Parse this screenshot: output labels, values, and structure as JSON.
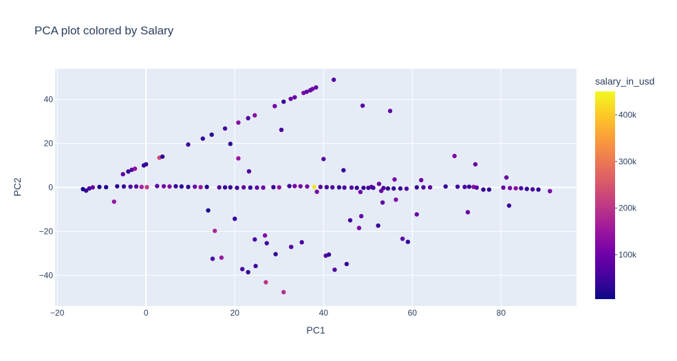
{
  "chart_data": {
    "type": "scatter",
    "title": "PCA plot colored by Salary",
    "xlabel": "PC1",
    "ylabel": "PC2",
    "xlim": [
      -20.5,
      97
    ],
    "ylim": [
      -54,
      54
    ],
    "xticks": [
      -20,
      0,
      20,
      40,
      60,
      80
    ],
    "yticks": [
      -40,
      -20,
      0,
      20,
      40
    ],
    "grid": true,
    "colorbar": {
      "title": "salary_in_usd",
      "range": [
        5000,
        450000
      ],
      "ticks": [
        100000,
        200000,
        300000,
        400000
      ],
      "tick_labels": [
        "100k",
        "200k",
        "300k",
        "400k"
      ],
      "colorscale": [
        "#0d0887",
        "#46039f",
        "#7201a8",
        "#9c179e",
        "#bd3786",
        "#d8576b",
        "#ed7953",
        "#fb9f3a",
        "#fdca26",
        "#f0f921"
      ]
    },
    "background_color": "#e5ecf6",
    "points": [
      {
        "x": -14.2,
        "y": -0.8,
        "salary": 15000
      },
      {
        "x": -13.5,
        "y": -1.5,
        "salary": 40000
      },
      {
        "x": -12.8,
        "y": -0.5,
        "salary": 60000
      },
      {
        "x": -12.0,
        "y": 0.0,
        "salary": 90000
      },
      {
        "x": -10.5,
        "y": 0.2,
        "salary": 20000
      },
      {
        "x": -9.0,
        "y": 0.1,
        "salary": 25000
      },
      {
        "x": -7.2,
        "y": -6.5,
        "salary": 150000
      },
      {
        "x": -6.5,
        "y": 0.5,
        "salary": 30000
      },
      {
        "x": -5.2,
        "y": 6.0,
        "salary": 80000
      },
      {
        "x": -5.0,
        "y": 0.4,
        "salary": 40000
      },
      {
        "x": -4.0,
        "y": 7.2,
        "salary": 40000
      },
      {
        "x": -3.5,
        "y": 0.3,
        "salary": 60000
      },
      {
        "x": -3.2,
        "y": 8.0,
        "salary": 70000
      },
      {
        "x": -2.5,
        "y": 8.5,
        "salary": 140000
      },
      {
        "x": -2.2,
        "y": 0.4,
        "salary": 70000
      },
      {
        "x": -1.0,
        "y": 0.2,
        "salary": 170000
      },
      {
        "x": -0.5,
        "y": 10.0,
        "salary": 40000
      },
      {
        "x": 0.0,
        "y": 10.5,
        "salary": 40000
      },
      {
        "x": 0.2,
        "y": 0.1,
        "salary": 210000
      },
      {
        "x": 2.5,
        "y": 0.6,
        "salary": 80000
      },
      {
        "x": 3.0,
        "y": 13.5,
        "salary": 230000
      },
      {
        "x": 3.7,
        "y": 14.0,
        "salary": 30000
      },
      {
        "x": 4.0,
        "y": 0.5,
        "salary": 110000
      },
      {
        "x": 5.3,
        "y": 0.4,
        "salary": 120000
      },
      {
        "x": 6.7,
        "y": 0.5,
        "salary": 40000
      },
      {
        "x": 8.0,
        "y": 0.4,
        "salary": 30000
      },
      {
        "x": 9.5,
        "y": 19.5,
        "salary": 50000
      },
      {
        "x": 9.5,
        "y": 0.2,
        "salary": 40000
      },
      {
        "x": 11.0,
        "y": 0.3,
        "salary": 90000
      },
      {
        "x": 12.3,
        "y": 0.1,
        "salary": 150000
      },
      {
        "x": 12.8,
        "y": 22.2,
        "salary": 40000
      },
      {
        "x": 13.7,
        "y": 0.2,
        "salary": 30000
      },
      {
        "x": 14.0,
        "y": -10.5,
        "salary": 20000
      },
      {
        "x": 14.8,
        "y": 24.0,
        "salary": 30000
      },
      {
        "x": 15.0,
        "y": -32.5,
        "salary": 60000
      },
      {
        "x": 15.5,
        "y": -19.8,
        "salary": 180000
      },
      {
        "x": 16.5,
        "y": 0.0,
        "salary": 70000
      },
      {
        "x": 17.0,
        "y": -32.0,
        "salary": 150000
      },
      {
        "x": 17.8,
        "y": 0.0,
        "salary": 40000
      },
      {
        "x": 17.8,
        "y": 26.8,
        "salary": 60000
      },
      {
        "x": 19.0,
        "y": 0.0,
        "salary": 40000
      },
      {
        "x": 19.0,
        "y": 19.8,
        "salary": 30000
      },
      {
        "x": 20.0,
        "y": -14.3,
        "salary": 40000
      },
      {
        "x": 20.5,
        "y": -0.2,
        "salary": 50000
      },
      {
        "x": 20.8,
        "y": 29.5,
        "salary": 130000
      },
      {
        "x": 20.8,
        "y": 13.2,
        "salary": 150000
      },
      {
        "x": 21.7,
        "y": -37.2,
        "salary": 60000
      },
      {
        "x": 22.0,
        "y": 0.0,
        "salary": 80000
      },
      {
        "x": 23.0,
        "y": 31.5,
        "salary": 70000
      },
      {
        "x": 23.2,
        "y": 7.3,
        "salary": 60000
      },
      {
        "x": 23.0,
        "y": -38.6,
        "salary": 40000
      },
      {
        "x": 23.5,
        "y": -0.1,
        "salary": 40000
      },
      {
        "x": 24.5,
        "y": 32.8,
        "salary": 130000
      },
      {
        "x": 24.5,
        "y": -23.7,
        "salary": 60000
      },
      {
        "x": 24.7,
        "y": -35.8,
        "salary": 50000
      },
      {
        "x": 25.0,
        "y": -0.1,
        "salary": 80000
      },
      {
        "x": 26.4,
        "y": -0.1,
        "salary": 100000
      },
      {
        "x": 26.8,
        "y": -21.9,
        "salary": 120000
      },
      {
        "x": 27.2,
        "y": -25.4,
        "salary": 50000
      },
      {
        "x": 27.0,
        "y": -43.2,
        "salary": 200000
      },
      {
        "x": 28.7,
        "y": 0.1,
        "salary": 40000
      },
      {
        "x": 29.0,
        "y": 37.0,
        "salary": 110000
      },
      {
        "x": 29.2,
        "y": -30.4,
        "salary": 40000
      },
      {
        "x": 30.0,
        "y": 0.0,
        "salary": 140000
      },
      {
        "x": 30.5,
        "y": 26.2,
        "salary": 60000
      },
      {
        "x": 31.0,
        "y": -47.7,
        "salary": 190000
      },
      {
        "x": 31.0,
        "y": 39.0,
        "salary": 40000
      },
      {
        "x": 32.3,
        "y": 0.6,
        "salary": 50000
      },
      {
        "x": 32.6,
        "y": 40.3,
        "salary": 100000
      },
      {
        "x": 32.7,
        "y": -27.1,
        "salary": 70000
      },
      {
        "x": 33.5,
        "y": 41.0,
        "salary": 80000
      },
      {
        "x": 33.5,
        "y": 0.6,
        "salary": 110000
      },
      {
        "x": 34.8,
        "y": 0.5,
        "salary": 110000
      },
      {
        "x": 35.1,
        "y": -25.0,
        "salary": 60000
      },
      {
        "x": 35.5,
        "y": 43.0,
        "salary": 110000
      },
      {
        "x": 36.2,
        "y": 43.5,
        "salary": 90000
      },
      {
        "x": 36.3,
        "y": 0.4,
        "salary": 110000
      },
      {
        "x": 37.0,
        "y": 44.2,
        "salary": 80000
      },
      {
        "x": 37.5,
        "y": 44.8,
        "salary": 100000
      },
      {
        "x": 37.9,
        "y": 0.2,
        "salary": 430000
      },
      {
        "x": 38.3,
        "y": 45.5,
        "salary": 90000
      },
      {
        "x": 38.5,
        "y": -2.0,
        "salary": 110000
      },
      {
        "x": 39.3,
        "y": 0.2,
        "salary": 70000
      },
      {
        "x": 40.0,
        "y": 12.9,
        "salary": 70000
      },
      {
        "x": 40.5,
        "y": -31.1,
        "salary": 70000
      },
      {
        "x": 40.7,
        "y": 0.1,
        "salary": 50000
      },
      {
        "x": 41.2,
        "y": -30.6,
        "salary": 40000
      },
      {
        "x": 42.0,
        "y": 0.0,
        "salary": 60000
      },
      {
        "x": 42.3,
        "y": 49.0,
        "salary": 70000
      },
      {
        "x": 42.5,
        "y": -37.5,
        "salary": 60000
      },
      {
        "x": 43.5,
        "y": 0.0,
        "salary": 40000
      },
      {
        "x": 44.5,
        "y": 7.8,
        "salary": 40000
      },
      {
        "x": 44.7,
        "y": -0.1,
        "salary": 60000
      },
      {
        "x": 45.2,
        "y": -34.9,
        "salary": 40000
      },
      {
        "x": 46.0,
        "y": -15.0,
        "salary": 50000
      },
      {
        "x": 46.3,
        "y": -0.1,
        "salary": 70000
      },
      {
        "x": 47.5,
        "y": -0.2,
        "salary": 40000
      },
      {
        "x": 48.0,
        "y": -18.5,
        "salary": 110000
      },
      {
        "x": 48.3,
        "y": -2.1,
        "salary": 100000
      },
      {
        "x": 48.5,
        "y": -13.1,
        "salary": 80000
      },
      {
        "x": 48.8,
        "y": 37.2,
        "salary": 70000
      },
      {
        "x": 49.0,
        "y": -0.2,
        "salary": 40000
      },
      {
        "x": 50.1,
        "y": -0.2,
        "salary": 50000
      },
      {
        "x": 50.8,
        "y": 0.2,
        "salary": 80000
      },
      {
        "x": 51.2,
        "y": -0.2,
        "salary": 50000
      },
      {
        "x": 52.3,
        "y": -17.4,
        "salary": 40000
      },
      {
        "x": 52.5,
        "y": 1.6,
        "salary": 90000
      },
      {
        "x": 53.0,
        "y": -1.6,
        "salary": 100000
      },
      {
        "x": 53.3,
        "y": -6.9,
        "salary": 80000
      },
      {
        "x": 53.5,
        "y": -0.3,
        "salary": 60000
      },
      {
        "x": 54.5,
        "y": -0.5,
        "salary": 40000
      },
      {
        "x": 55.0,
        "y": 34.8,
        "salary": 80000
      },
      {
        "x": 55.8,
        "y": -0.5,
        "salary": 40000
      },
      {
        "x": 56.0,
        "y": 3.6,
        "salary": 110000
      },
      {
        "x": 56.3,
        "y": -5.6,
        "salary": 120000
      },
      {
        "x": 57.3,
        "y": -0.5,
        "salary": 40000
      },
      {
        "x": 57.8,
        "y": -23.4,
        "salary": 80000
      },
      {
        "x": 58.7,
        "y": -0.6,
        "salary": 60000
      },
      {
        "x": 59.0,
        "y": -24.8,
        "salary": 40000
      },
      {
        "x": 61.0,
        "y": 0.0,
        "salary": 40000
      },
      {
        "x": 61.0,
        "y": -12.3,
        "salary": 90000
      },
      {
        "x": 62.0,
        "y": 3.3,
        "salary": 100000
      },
      {
        "x": 62.5,
        "y": 0.0,
        "salary": 60000
      },
      {
        "x": 64.0,
        "y": 0.0,
        "salary": 80000
      },
      {
        "x": 67.5,
        "y": 0.4,
        "salary": 40000
      },
      {
        "x": 69.5,
        "y": 14.3,
        "salary": 120000
      },
      {
        "x": 70.2,
        "y": 0.3,
        "salary": 50000
      },
      {
        "x": 71.8,
        "y": 0.2,
        "salary": 60000
      },
      {
        "x": 72.5,
        "y": -11.3,
        "salary": 90000
      },
      {
        "x": 72.8,
        "y": 0.3,
        "salary": 40000
      },
      {
        "x": 73.8,
        "y": 0.2,
        "salary": 130000
      },
      {
        "x": 74.2,
        "y": 10.5,
        "salary": 90000
      },
      {
        "x": 74.5,
        "y": -0.1,
        "salary": 80000
      },
      {
        "x": 76.0,
        "y": -1.0,
        "salary": 40000
      },
      {
        "x": 77.3,
        "y": -1.0,
        "salary": 40000
      },
      {
        "x": 80.5,
        "y": -0.1,
        "salary": 90000
      },
      {
        "x": 81.2,
        "y": 4.5,
        "salary": 90000
      },
      {
        "x": 81.8,
        "y": -8.3,
        "salary": 40000
      },
      {
        "x": 82.0,
        "y": -0.3,
        "salary": 110000
      },
      {
        "x": 83.3,
        "y": -0.4,
        "salary": 130000
      },
      {
        "x": 84.5,
        "y": -0.4,
        "salary": 60000
      },
      {
        "x": 85.8,
        "y": -0.7,
        "salary": 40000
      },
      {
        "x": 87.1,
        "y": -0.9,
        "salary": 60000
      },
      {
        "x": 88.4,
        "y": -1.0,
        "salary": 40000
      },
      {
        "x": 91.0,
        "y": -1.7,
        "salary": 110000
      }
    ]
  }
}
